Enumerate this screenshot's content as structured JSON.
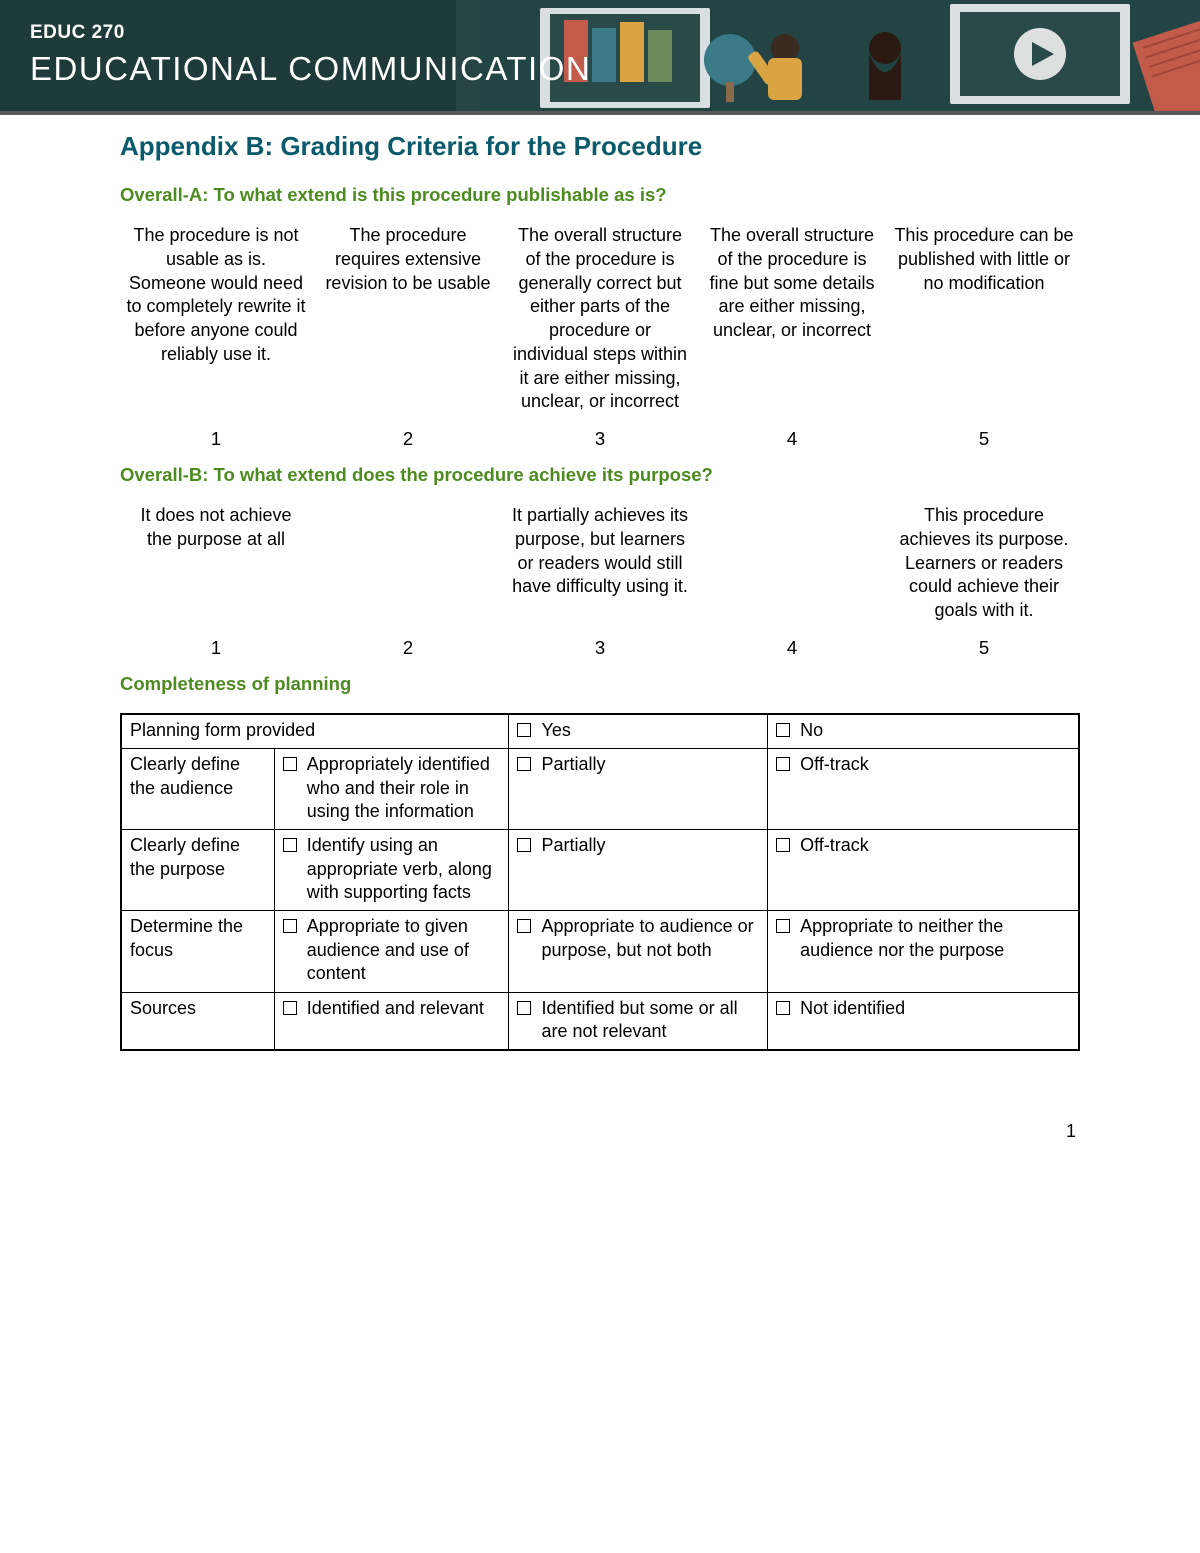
{
  "banner": {
    "course_code": "EDUC 270",
    "course_title": "EDUCATIONAL COMMUNICATION",
    "bg_color": "#1e3a3a",
    "text_color": "#ffffff"
  },
  "colors": {
    "title_color": "#0b5a6b",
    "heading_color": "#4d8a1f",
    "border_color": "#000000",
    "body_text": "#000000"
  },
  "title": "Appendix B: Grading Criteria for the Procedure",
  "overall_a": {
    "heading": "Overall-A: To what extend is this procedure publishable as is?",
    "descriptors": [
      "The procedure is not usable as is. Someone would need to completely rewrite it before anyone could reliably use it.",
      "The procedure requires extensive revision to be usable",
      "The overall structure of the procedure is generally correct but either parts of the procedure or individual steps within it are either missing, unclear, or incorrect",
      "The overall structure of the procedure is fine but some details are either missing, unclear, or incorrect",
      "This procedure can be published with little or no modification"
    ],
    "numbers": [
      "1",
      "2",
      "3",
      "4",
      "5"
    ]
  },
  "overall_b": {
    "heading": "Overall-B: To what extend does the procedure achieve its purpose?",
    "descriptors": [
      "It does not achieve the purpose at all",
      "",
      "It partially achieves its purpose, but learners or readers would still have difficulty using it.",
      "",
      "This procedure achieves its purpose. Learners or readers could achieve their goals with it."
    ],
    "numbers": [
      "1",
      "2",
      "3",
      "4",
      "5"
    ]
  },
  "completeness": {
    "heading": "Completeness of planning",
    "rows": [
      {
        "label": "Planning form provided",
        "span_first_two": true,
        "cells": [
          "Yes",
          "No"
        ]
      },
      {
        "label": "Clearly define the audience",
        "cells": [
          "Appropriately identified who and their role in using the information",
          "Partially",
          "Off-track"
        ]
      },
      {
        "label": "Clearly define the purpose",
        "cells": [
          "Identify using an appropriate verb, along with supporting facts",
          "Partially",
          "Off-track"
        ]
      },
      {
        "label": "Determine the focus",
        "cells": [
          "Appropriate to given audience and use of content",
          "Appropriate to audience or purpose, but not both",
          "Appropriate to neither the audience nor the purpose"
        ]
      },
      {
        "label": "Sources",
        "cells": [
          "Identified and relevant",
          "Identified but some or all are not relevant",
          "Not identified"
        ]
      }
    ],
    "col_widths_pct": [
      16,
      24.5,
      27,
      32.5
    ]
  },
  "page_number": "1"
}
